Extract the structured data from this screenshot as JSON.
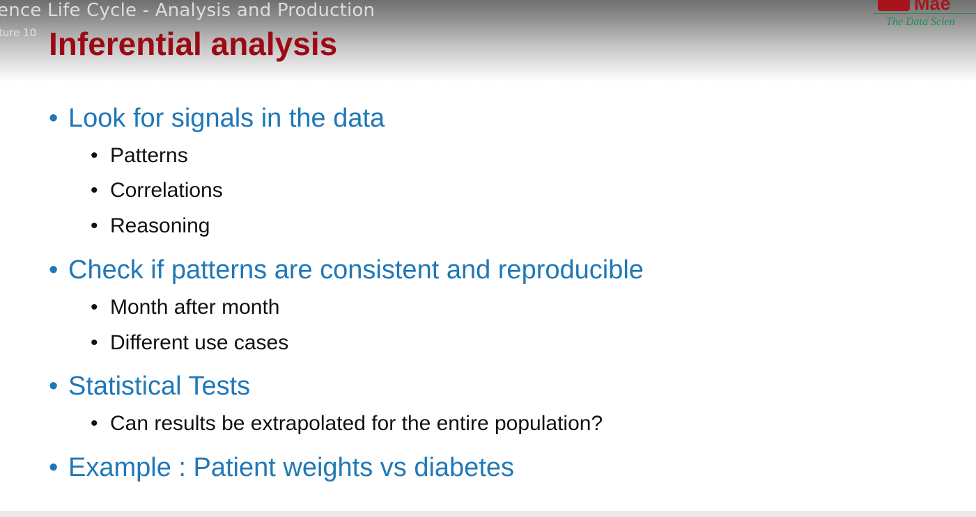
{
  "video": {
    "title": "ence Life Cycle - Analysis and Production",
    "subtitle": "ture 10"
  },
  "logo": {
    "brand": "Mae",
    "tagline": "The Data Scien"
  },
  "slide": {
    "title": "Inferential analysis",
    "bullet_glyph": "•",
    "items": [
      {
        "text": "Look for signals in the data",
        "children": [
          "Patterns",
          "Correlations",
          "Reasoning"
        ]
      },
      {
        "text": "Check if patterns are consistent and reproducible",
        "children": [
          "Month after month",
          "Different use cases"
        ]
      },
      {
        "text": "Statistical Tests",
        "children": [
          "Can results be extrapolated for the entire population?"
        ]
      },
      {
        "text": "Example : Patient weights vs diabetes",
        "children": []
      }
    ]
  },
  "colors": {
    "title": "#9b0a14",
    "level1": "#1f78b8",
    "level2": "#111111",
    "logo_red": "#a8141c",
    "logo_green": "#1a8f52"
  }
}
